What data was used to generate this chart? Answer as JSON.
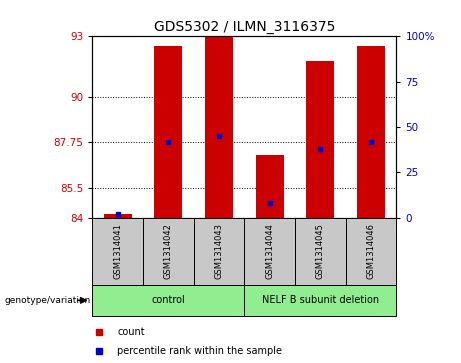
{
  "title": "GDS5302 / ILMN_3116375",
  "samples": [
    "GSM1314041",
    "GSM1314042",
    "GSM1314043",
    "GSM1314044",
    "GSM1314045",
    "GSM1314046"
  ],
  "count_values": [
    84.2,
    92.5,
    93.0,
    87.1,
    91.8,
    92.5
  ],
  "percentile_values": [
    2.0,
    42.0,
    45.0,
    8.0,
    38.0,
    42.0
  ],
  "ymin": 84,
  "ymax": 93,
  "yticks_left": [
    84,
    85.5,
    87.75,
    90,
    93
  ],
  "ytick_labels_left": [
    "84",
    "85.5",
    "87.75",
    "90",
    "93"
  ],
  "yticks_right": [
    0,
    25,
    50,
    75,
    100
  ],
  "ytick_labels_right": [
    "0",
    "25",
    "50",
    "75",
    "100%"
  ],
  "bar_color": "#cc0000",
  "percentile_color": "#0000cc",
  "group_labels": [
    "control",
    "NELF B subunit deletion"
  ],
  "group_ranges": [
    [
      0,
      3
    ],
    [
      3,
      6
    ]
  ],
  "sample_bg_color": "#c8c8c8",
  "group_bg_color": "#90ee90",
  "bar_width": 0.55,
  "left_label_color": "#cc0000",
  "right_label_color": "#0000cc",
  "legend_count_label": "count",
  "legend_pct_label": "percentile rank within the sample",
  "genotype_label": "genotype/variation"
}
